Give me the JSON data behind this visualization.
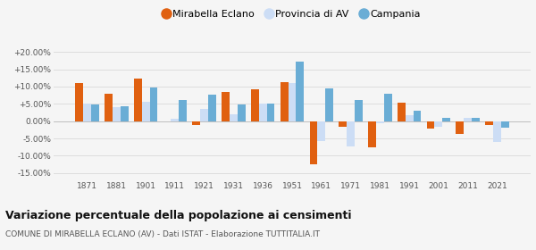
{
  "years": [
    1871,
    1881,
    1901,
    1911,
    1921,
    1931,
    1936,
    1951,
    1961,
    1971,
    1981,
    1991,
    2001,
    2011,
    2021
  ],
  "mirabella": [
    11.0,
    8.0,
    12.2,
    0.0,
    -1.0,
    8.5,
    9.2,
    11.2,
    -12.5,
    -1.5,
    -7.5,
    5.3,
    -2.2,
    -3.8,
    -1.0
  ],
  "provincia": [
    5.2,
    4.0,
    5.5,
    0.8,
    3.5,
    2.0,
    5.2,
    11.0,
    -5.8,
    -7.2,
    -0.5,
    1.6,
    -1.5,
    1.0,
    -6.0
  ],
  "campania": [
    4.8,
    4.2,
    9.6,
    6.2,
    7.6,
    4.8,
    5.2,
    17.2,
    9.5,
    6.2,
    8.0,
    3.0,
    1.0,
    1.0,
    -2.0
  ],
  "mirabella_color": "#e06010",
  "provincia_color": "#ccddf5",
  "campania_color": "#6aadd5",
  "title": "Variazione percentuale della popolazione ai censimenti",
  "subtitle": "COMUNE DI MIRABELLA ECLANO (AV) - Dati ISTAT - Elaborazione TUTTITALIA.IT",
  "ytick_labels": [
    "-15.00%",
    "-10.00%",
    "-5.00%",
    "0.00%",
    "+5.00%",
    "+10.00%",
    "+15.00%",
    "+20.00%"
  ],
  "ytick_vals": [
    -15,
    -10,
    -5,
    0,
    5,
    10,
    15,
    20
  ],
  "ylim": [
    -17,
    22
  ],
  "background_color": "#f5f5f5",
  "legend_labels": [
    "Mirabella Eclano",
    "Provincia di AV",
    "Campania"
  ]
}
